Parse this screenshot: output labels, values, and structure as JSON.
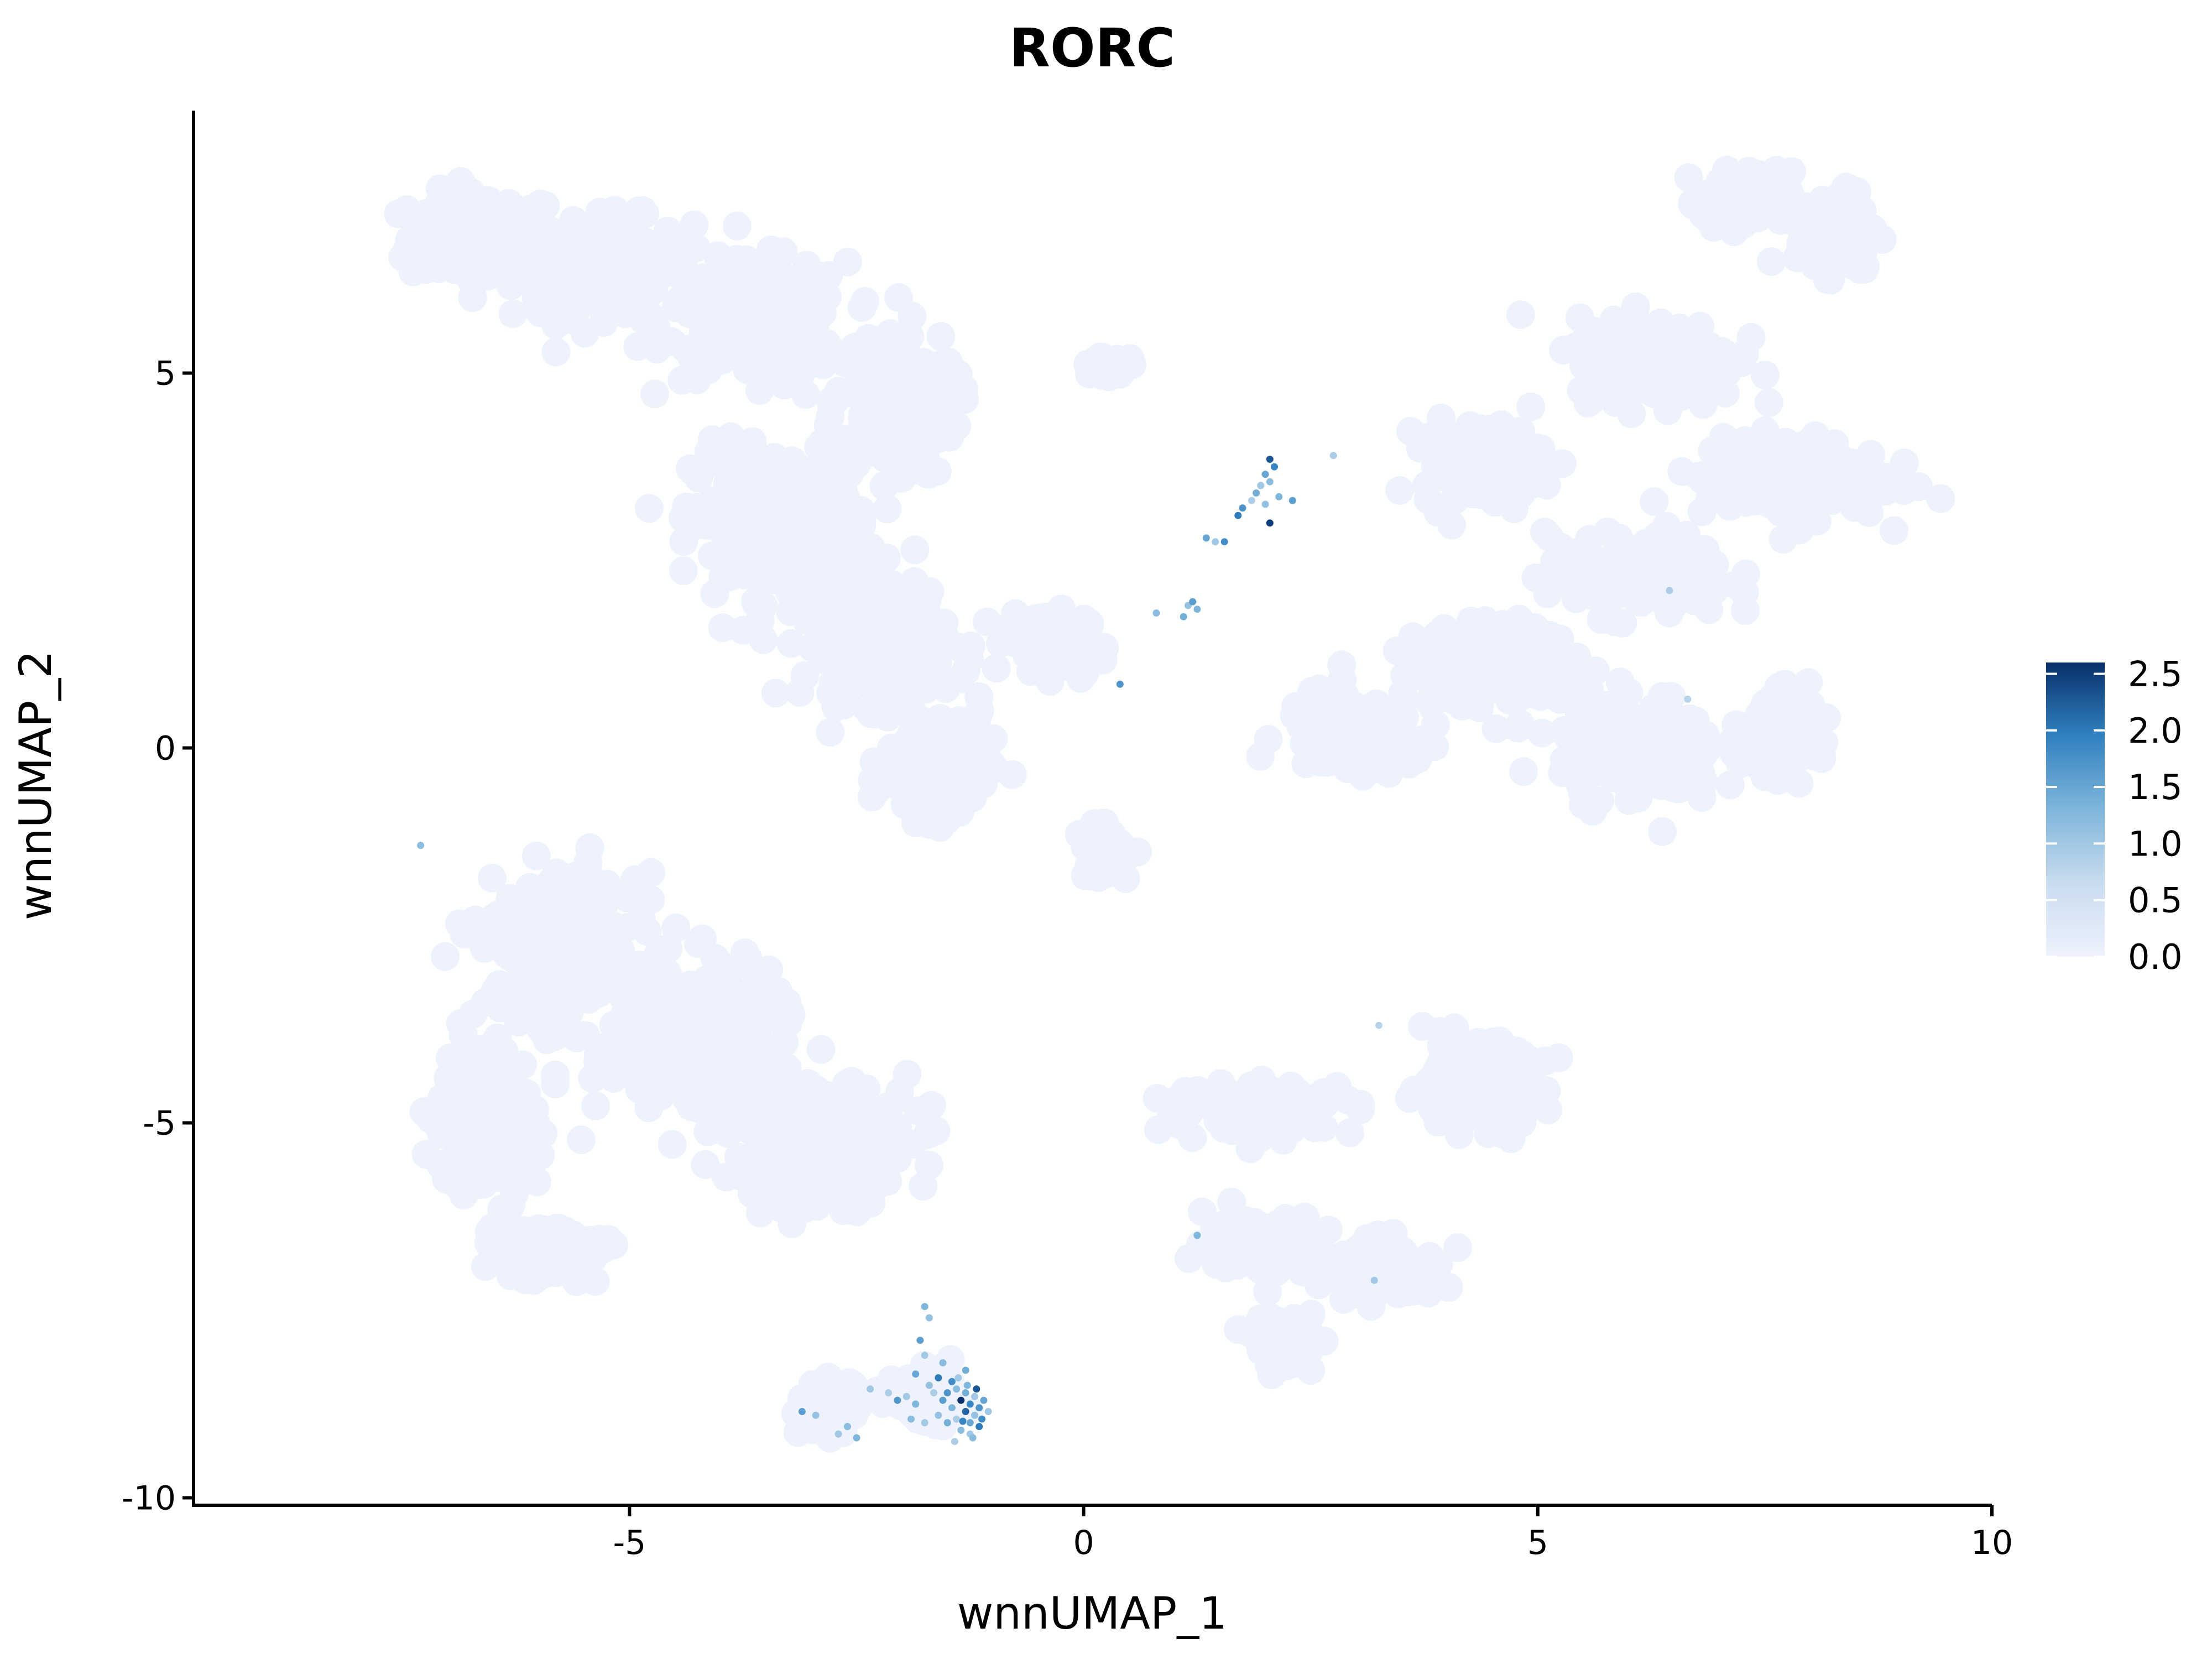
{
  "chart_data": {
    "type": "scatter",
    "title": "RORC",
    "xlabel": "wnnUMAP_1",
    "ylabel": "wnnUMAP_2",
    "xlim": [
      -9.8,
      10
    ],
    "ylim": [
      -10.1,
      8.5
    ],
    "x_ticks": [
      -5,
      0,
      5,
      10
    ],
    "x_tick_labels": [
      "-5",
      "0",
      "5",
      "10"
    ],
    "y_ticks": [
      5,
      0,
      -5,
      -10
    ],
    "y_tick_labels": [
      "5",
      "0",
      "-5",
      "-10"
    ],
    "grid": false,
    "legend": {
      "placement": "right",
      "type": "colorbar",
      "min": 0,
      "max": 2.6,
      "ticks": [
        2.5,
        2.0,
        1.5,
        1.0,
        0.5,
        0.0
      ],
      "tick_labels": [
        "2.5",
        "2.0",
        "1.5",
        "1.0",
        "0.5",
        "0.0"
      ],
      "color_low": "#eef2fd",
      "color_high": "#08306b"
    },
    "background_clusters": [
      {
        "x": -6.6,
        "y": 6.8,
        "sx": 0.75,
        "sy": 0.55
      },
      {
        "x": -5.3,
        "y": 6.4,
        "sx": 0.9,
        "sy": 0.6
      },
      {
        "x": -3.6,
        "y": 5.7,
        "sx": 0.9,
        "sy": 0.7
      },
      {
        "x": -2.1,
        "y": 4.6,
        "sx": 0.6,
        "sy": 0.9
      },
      {
        "x": -3.3,
        "y": 3.0,
        "sx": 0.9,
        "sy": 0.9
      },
      {
        "x": -2.3,
        "y": 1.5,
        "sx": 0.7,
        "sy": 0.8
      },
      {
        "x": -1.6,
        "y": -0.2,
        "sx": 0.5,
        "sy": 0.7
      },
      {
        "x": -0.4,
        "y": 1.4,
        "sx": 0.4,
        "sy": 0.4
      },
      {
        "x": 7.3,
        "y": 7.3,
        "sx": 0.45,
        "sy": 0.35
      },
      {
        "x": 8.3,
        "y": 6.9,
        "sx": 0.4,
        "sy": 0.5
      },
      {
        "x": 6.3,
        "y": 5.2,
        "sx": 0.8,
        "sy": 0.5
      },
      {
        "x": 4.4,
        "y": 3.8,
        "sx": 0.6,
        "sy": 0.5
      },
      {
        "x": 7.8,
        "y": 3.6,
        "sx": 0.9,
        "sy": 0.5
      },
      {
        "x": 6.1,
        "y": 2.3,
        "sx": 0.9,
        "sy": 0.5
      },
      {
        "x": 4.5,
        "y": 1.1,
        "sx": 0.8,
        "sy": 0.5
      },
      {
        "x": 6.1,
        "y": 0.0,
        "sx": 0.8,
        "sy": 0.65
      },
      {
        "x": 7.8,
        "y": 0.2,
        "sx": 0.4,
        "sy": 0.45
      },
      {
        "x": 3.0,
        "y": 0.2,
        "sx": 0.7,
        "sy": 0.5
      },
      {
        "x": -5.8,
        "y": -2.7,
        "sx": 0.8,
        "sy": 0.9
      },
      {
        "x": -4.3,
        "y": -3.9,
        "sx": 1.0,
        "sy": 0.9
      },
      {
        "x": -2.9,
        "y": -5.3,
        "sx": 0.9,
        "sy": 0.7
      },
      {
        "x": -6.6,
        "y": -5.0,
        "sx": 0.5,
        "sy": 0.9
      },
      {
        "x": -5.9,
        "y": -6.7,
        "sx": 0.6,
        "sy": 0.35
      },
      {
        "x": 4.3,
        "y": -4.5,
        "sx": 0.7,
        "sy": 0.5
      },
      {
        "x": 2.0,
        "y": -4.8,
        "sx": 0.9,
        "sy": 0.3
      },
      {
        "x": 2.0,
        "y": -6.6,
        "sx": 0.6,
        "sy": 0.35
      },
      {
        "x": 3.3,
        "y": -7.0,
        "sx": 0.6,
        "sy": 0.35
      },
      {
        "x": 2.2,
        "y": -7.9,
        "sx": 0.3,
        "sy": 0.3
      },
      {
        "x": -2.8,
        "y": -8.8,
        "sx": 0.3,
        "sy": 0.3
      },
      {
        "x": -1.7,
        "y": -8.7,
        "sx": 0.35,
        "sy": 0.3
      },
      {
        "x": 0.3,
        "y": 5.1,
        "sx": 0.2,
        "sy": 0.12
      },
      {
        "x": 0.2,
        "y": -1.4,
        "sx": 0.2,
        "sy": 0.3
      }
    ],
    "points": [
      {
        "x": 2.05,
        "y": 3.85,
        "v": 2.3
      },
      {
        "x": 2.1,
        "y": 3.75,
        "v": 1.9
      },
      {
        "x": 2.0,
        "y": 3.65,
        "v": 1.5
      },
      {
        "x": 2.05,
        "y": 3.55,
        "v": 1.2
      },
      {
        "x": 1.95,
        "y": 3.5,
        "v": 1.0
      },
      {
        "x": 1.9,
        "y": 3.4,
        "v": 1.4
      },
      {
        "x": 1.85,
        "y": 3.3,
        "v": 0.9
      },
      {
        "x": 2.0,
        "y": 3.25,
        "v": 1.1
      },
      {
        "x": 1.75,
        "y": 3.2,
        "v": 1.7
      },
      {
        "x": 1.7,
        "y": 3.1,
        "v": 2.0
      },
      {
        "x": 2.15,
        "y": 3.35,
        "v": 1.3
      },
      {
        "x": 2.3,
        "y": 3.3,
        "v": 1.6
      },
      {
        "x": 2.05,
        "y": 3.0,
        "v": 2.5
      },
      {
        "x": 2.75,
        "y": 3.9,
        "v": 0.9
      },
      {
        "x": 1.35,
        "y": 2.8,
        "v": 1.5
      },
      {
        "x": 1.45,
        "y": 2.75,
        "v": 1.0
      },
      {
        "x": 1.55,
        "y": 2.75,
        "v": 1.8
      },
      {
        "x": 1.2,
        "y": 1.95,
        "v": 1.6
      },
      {
        "x": 1.25,
        "y": 1.85,
        "v": 1.3
      },
      {
        "x": 1.15,
        "y": 1.9,
        "v": 1.1
      },
      {
        "x": 1.1,
        "y": 1.75,
        "v": 1.4
      },
      {
        "x": 0.8,
        "y": 1.8,
        "v": 1.2
      },
      {
        "x": 0.4,
        "y": 0.85,
        "v": 1.7
      },
      {
        "x": -7.3,
        "y": -1.3,
        "v": 1.2
      },
      {
        "x": 6.45,
        "y": 2.1,
        "v": 0.9
      },
      {
        "x": 6.65,
        "y": 0.65,
        "v": 0.8
      },
      {
        "x": 3.25,
        "y": -3.7,
        "v": 0.8
      },
      {
        "x": 1.25,
        "y": -6.5,
        "v": 1.3
      },
      {
        "x": 3.2,
        "y": -7.1,
        "v": 1.0
      },
      {
        "x": -1.75,
        "y": -7.45,
        "v": 1.3
      },
      {
        "x": -1.7,
        "y": -7.6,
        "v": 1.1
      },
      {
        "x": -1.8,
        "y": -7.9,
        "v": 1.6
      },
      {
        "x": -1.75,
        "y": -8.1,
        "v": 1.0
      },
      {
        "x": -1.55,
        "y": -8.2,
        "v": 1.2
      },
      {
        "x": -1.85,
        "y": -8.35,
        "v": 1.5
      },
      {
        "x": -1.45,
        "y": -8.45,
        "v": 1.8
      },
      {
        "x": -1.4,
        "y": -8.55,
        "v": 1.2
      },
      {
        "x": -1.3,
        "y": -8.6,
        "v": 1.4
      },
      {
        "x": -1.2,
        "y": -8.65,
        "v": 1.0
      },
      {
        "x": -1.35,
        "y": -8.7,
        "v": 2.6
      },
      {
        "x": -1.25,
        "y": -8.75,
        "v": 1.9
      },
      {
        "x": -1.15,
        "y": -8.8,
        "v": 1.7
      },
      {
        "x": -1.45,
        "y": -8.8,
        "v": 1.3
      },
      {
        "x": -1.3,
        "y": -8.85,
        "v": 2.2
      },
      {
        "x": -1.2,
        "y": -8.9,
        "v": 1.1
      },
      {
        "x": -1.4,
        "y": -8.95,
        "v": 0.9
      },
      {
        "x": -1.25,
        "y": -9.0,
        "v": 1.5
      },
      {
        "x": -1.15,
        "y": -9.05,
        "v": 2.0
      },
      {
        "x": -1.35,
        "y": -9.1,
        "v": 1.2
      },
      {
        "x": -1.25,
        "y": -9.15,
        "v": 1.0
      },
      {
        "x": -1.5,
        "y": -9.0,
        "v": 1.4
      },
      {
        "x": -1.6,
        "y": -8.9,
        "v": 1.1
      },
      {
        "x": -1.55,
        "y": -8.7,
        "v": 1.6
      },
      {
        "x": -1.65,
        "y": -8.6,
        "v": 0.9
      },
      {
        "x": -1.85,
        "y": -8.75,
        "v": 1.3
      },
      {
        "x": -1.95,
        "y": -8.65,
        "v": 1.0
      },
      {
        "x": -2.05,
        "y": -8.7,
        "v": 1.7
      },
      {
        "x": -2.15,
        "y": -8.6,
        "v": 0.9
      },
      {
        "x": -1.9,
        "y": -8.95,
        "v": 1.2
      },
      {
        "x": -1.75,
        "y": -9.0,
        "v": 1.0
      },
      {
        "x": -1.1,
        "y": -8.7,
        "v": 1.5
      },
      {
        "x": -1.12,
        "y": -8.95,
        "v": 1.8
      },
      {
        "x": -1.28,
        "y": -8.5,
        "v": 1.3
      },
      {
        "x": -1.38,
        "y": -8.4,
        "v": 1.0
      },
      {
        "x": -1.6,
        "y": -8.4,
        "v": 2.0
      },
      {
        "x": -1.7,
        "y": -8.5,
        "v": 1.1
      },
      {
        "x": -1.22,
        "y": -9.2,
        "v": 1.2
      },
      {
        "x": -1.42,
        "y": -9.25,
        "v": 0.9
      },
      {
        "x": -1.3,
        "y": -8.3,
        "v": 1.4
      },
      {
        "x": -1.5,
        "y": -8.6,
        "v": 1.7
      },
      {
        "x": -1.05,
        "y": -8.85,
        "v": 1.0
      },
      {
        "x": -1.18,
        "y": -8.55,
        "v": 2.3
      },
      {
        "x": -1.33,
        "y": -8.98,
        "v": 1.9
      },
      {
        "x": -2.6,
        "y": -9.05,
        "v": 1.2
      },
      {
        "x": -2.7,
        "y": -9.15,
        "v": 1.0
      },
      {
        "x": -2.5,
        "y": -9.2,
        "v": 1.3
      },
      {
        "x": -2.95,
        "y": -8.9,
        "v": 1.1
      },
      {
        "x": -3.1,
        "y": -8.85,
        "v": 1.6
      },
      {
        "x": -2.35,
        "y": -8.55,
        "v": 1.0
      }
    ]
  }
}
